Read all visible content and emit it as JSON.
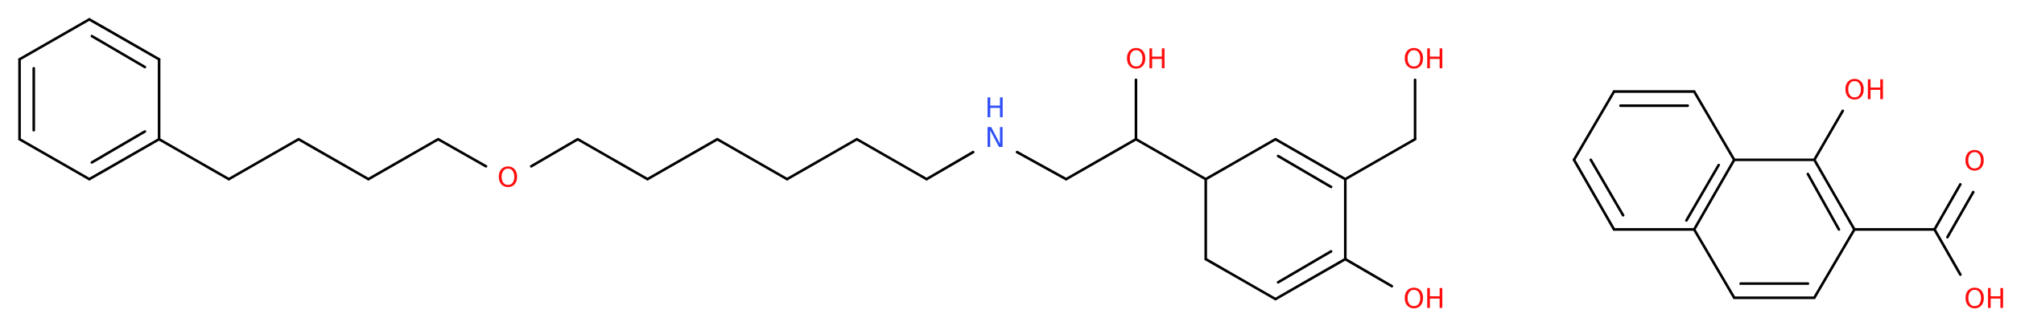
{
  "molecules": [
    {
      "labels": [
        "O",
        "H",
        "N",
        "OH",
        "OH",
        "OH"
      ]
    },
    {
      "labels": [
        "OH",
        "O",
        "OH"
      ]
    }
  ]
}
